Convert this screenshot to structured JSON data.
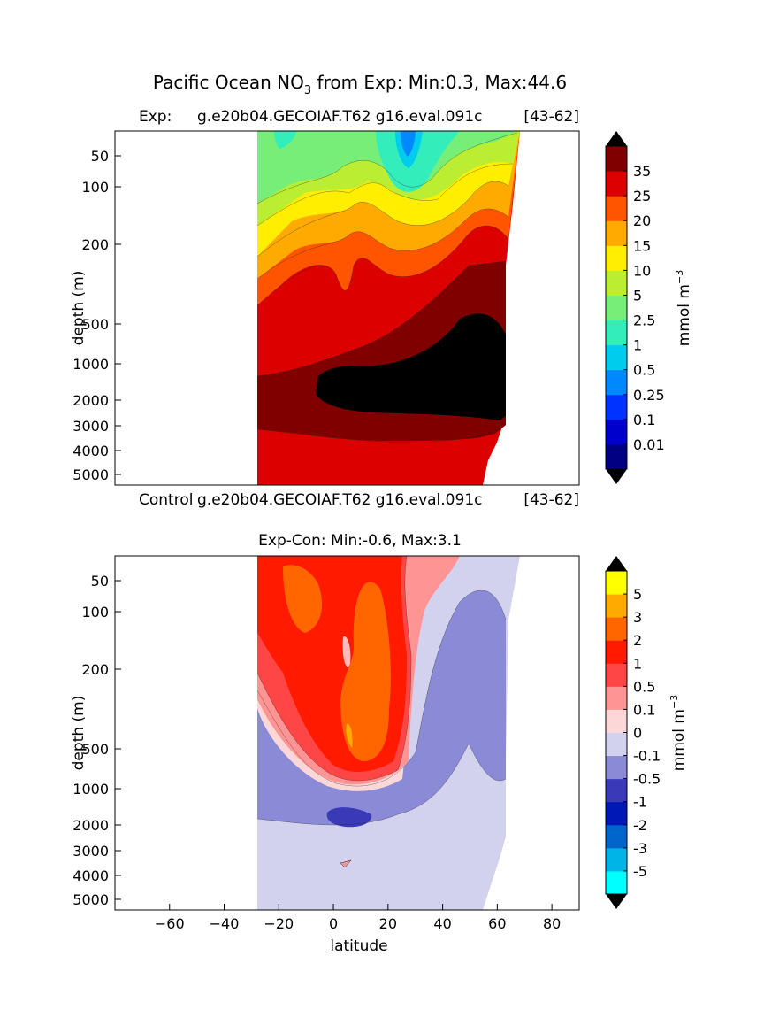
{
  "suptitle": {
    "main": "Pacific Ocean NO",
    "sub": "3",
    "rest": " from Exp: Min:0.3, Max:44.6"
  },
  "chart_data": [
    {
      "type": "heatmap",
      "title_left": "Exp:",
      "title_mid": "g.e20b04.GECOIAF.T62 g16.eval.091c",
      "title_right": "[43-62]",
      "ylabel": "depth (m)",
      "yticks": [
        "50",
        "100",
        "200",
        "500",
        "1000",
        "2000",
        "3000",
        "4000",
        "5000"
      ],
      "ytick_values": [
        50,
        100,
        200,
        500,
        1000,
        2000,
        3000,
        4000,
        5000
      ],
      "xlim": [
        -80,
        90
      ],
      "colorbar": {
        "label": "mmol m",
        "label_sup": "−3",
        "levels": [
          "0.01",
          "0.1",
          "0.25",
          "0.5",
          "1",
          "2.5",
          "5",
          "10",
          "15",
          "20",
          "25",
          "35"
        ],
        "colors": [
          "#000080",
          "#0000cd",
          "#0033ff",
          "#0088ff",
          "#00ccee",
          "#33eebb",
          "#77ee77",
          "#bbee33",
          "#ffee00",
          "#ffaa00",
          "#ff5500",
          "#dd0000",
          "#800000"
        ],
        "over_color": "#000000",
        "under_color": "#000000"
      }
    },
    {
      "type": "heatmap",
      "title_left": "Control",
      "title_mid": "g.e20b04.GECOIAF.T62 g16.eval.091c",
      "title_right": "[43-62]",
      "subtitle": "Exp-Con: Min:-0.6, Max:3.1",
      "ylabel": "depth (m)",
      "xlabel": "latitude",
      "xticks": [
        -60,
        -40,
        -20,
        0,
        20,
        40,
        60,
        80
      ],
      "xtick_labels": [
        "−60",
        "−40",
        "−20",
        "0",
        "20",
        "40",
        "60",
        "80"
      ],
      "yticks": [
        "50",
        "100",
        "200",
        "500",
        "1000",
        "2000",
        "3000",
        "4000",
        "5000"
      ],
      "ytick_values": [
        50,
        100,
        200,
        500,
        1000,
        2000,
        3000,
        4000,
        5000
      ],
      "xlim": [
        -80,
        90
      ],
      "colorbar": {
        "label": "mmol m",
        "label_sup": "−3",
        "levels": [
          "-5",
          "-3",
          "-2",
          "-1",
          "-0.5",
          "-0.1",
          "0",
          "0.1",
          "0.5",
          "1",
          "2",
          "3",
          "5"
        ],
        "colors": [
          "#00ffff",
          "#00b4e6",
          "#0066cc",
          "#0018b4",
          "#3a3ab9",
          "#8a8ad6",
          "#d2d2ee",
          "#fcd7d7",
          "#ff9494",
          "#ff4646",
          "#ff1a00",
          "#ff6600",
          "#ffaa00",
          "#ffff00"
        ],
        "over_color": "#000000",
        "under_color": "#000000"
      }
    }
  ]
}
